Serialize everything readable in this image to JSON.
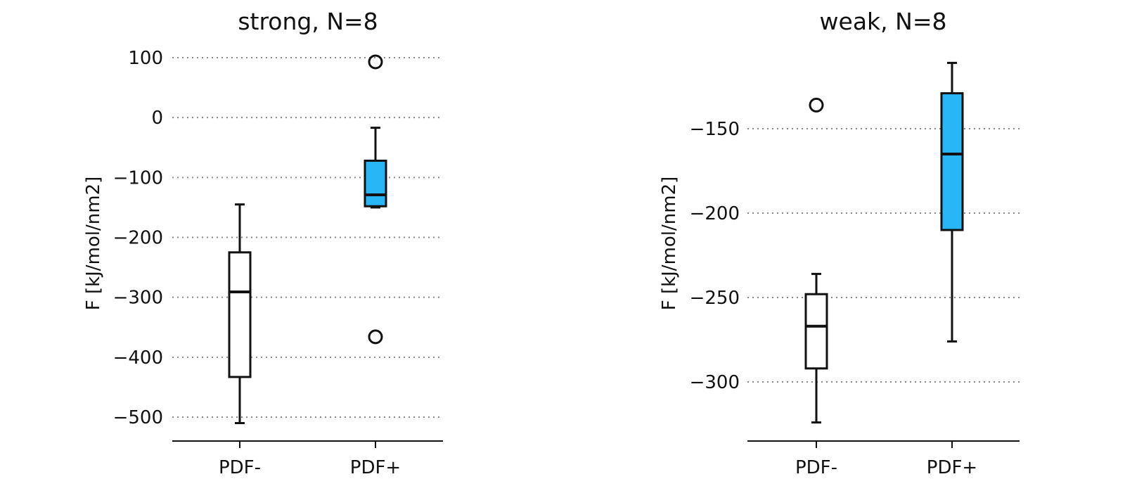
{
  "chart_data": [
    {
      "type": "box",
      "title": "strong, N=8",
      "ylabel": "F [kJ/mol/nm2]",
      "xlabel": "",
      "ylim": [
        -540,
        100
      ],
      "yticks": [
        100,
        0,
        -100,
        -200,
        -300,
        -400,
        -500
      ],
      "ytick_labels": [
        "100",
        "0",
        "−100",
        "−200",
        "−300",
        "−400",
        "−500"
      ],
      "grid": "horizontal dotted",
      "categories": [
        "PDF-",
        "PDF+"
      ],
      "boxes": [
        {
          "category": "PDF-",
          "whisker_low": -510,
          "q1": -433,
          "median": -291,
          "q3": -225,
          "whisker_high": -145,
          "outliers": [],
          "color": "#ffffff"
        },
        {
          "category": "PDF+",
          "whisker_low": -150,
          "q1": -148,
          "median": -129,
          "q3": -72,
          "whisker_high": -17,
          "outliers": [
            93,
            -366
          ],
          "color": "#29b6f6"
        }
      ]
    },
    {
      "type": "box",
      "title": "weak, N=8",
      "ylabel": "F [kJ/mol/nm2]",
      "xlabel": "",
      "ylim": [
        -335,
        -110
      ],
      "yticks": [
        -150,
        -200,
        -250,
        -300
      ],
      "ytick_labels": [
        "−150",
        "−200",
        "−250",
        "−300"
      ],
      "grid": "horizontal dotted",
      "categories": [
        "PDF-",
        "PDF+"
      ],
      "boxes": [
        {
          "category": "PDF-",
          "whisker_low": -324,
          "q1": -292,
          "median": -267,
          "q3": -248,
          "whisker_high": -236,
          "outliers": [
            -136
          ],
          "color": "#ffffff"
        },
        {
          "category": "PDF+",
          "whisker_low": -276,
          "q1": -210,
          "median": -165,
          "q3": -129,
          "whisker_high": -111,
          "outliers": [],
          "color": "#29b6f6"
        }
      ]
    }
  ]
}
